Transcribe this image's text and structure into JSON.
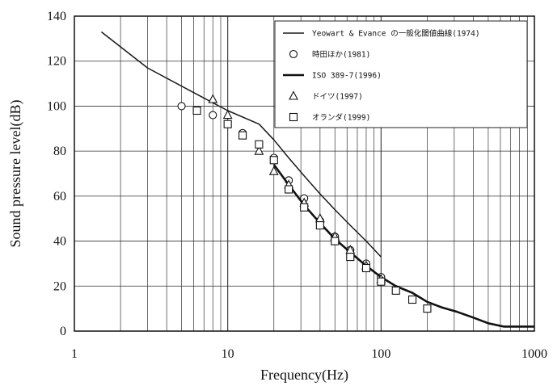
{
  "chart_data": {
    "type": "line",
    "xlabel": "Frequency(Hz)",
    "ylabel": "Sound pressure level(dB)",
    "xscale": "log",
    "xlim": [
      1,
      1000
    ],
    "ylim": [
      0,
      140
    ],
    "x_ticks": [
      "1",
      "10",
      "100",
      "1000"
    ],
    "y_ticks": [
      "0",
      "20",
      "40",
      "60",
      "80",
      "100",
      "120",
      "140"
    ],
    "grid": true,
    "legend_position": "top-right",
    "series": [
      {
        "name": "Yeowart & Evance の一般化閾値曲線(1974)",
        "style": "thin-line",
        "color": "#1a1a1a",
        "x": [
          1.5,
          3,
          6,
          10,
          16,
          20,
          25,
          31.5,
          40,
          50,
          63,
          80,
          100
        ],
        "y": [
          133,
          117,
          106,
          98,
          92,
          85,
          77,
          69,
          61,
          54,
          47,
          40,
          33
        ]
      },
      {
        "name": "時田ほか(1981)",
        "style": "circle",
        "color": "#1a1a1a",
        "x": [
          5,
          8,
          12.5,
          20,
          25,
          31.5,
          40,
          50,
          63,
          80,
          100
        ],
        "y": [
          100,
          96,
          88,
          77,
          67,
          59,
          49,
          42,
          36,
          30,
          24
        ]
      },
      {
        "name": "ISO 389-7(1996)",
        "style": "thick-line",
        "color": "#111111",
        "x": [
          20,
          25,
          31.5,
          40,
          50,
          63,
          80,
          100,
          125,
          160,
          200,
          250,
          315,
          400,
          500,
          630,
          800,
          1000
        ],
        "y": [
          74,
          65,
          56,
          48,
          41,
          35,
          29,
          24,
          20,
          17,
          13,
          10.5,
          8.5,
          6,
          3.5,
          2,
          2,
          2
        ]
      },
      {
        "name": "ドイツ(1997)",
        "style": "triangle",
        "color": "#1a1a1a",
        "x": [
          8,
          10,
          16,
          20,
          25,
          31.5,
          40,
          50,
          63,
          80,
          100
        ],
        "y": [
          103,
          96,
          80,
          71,
          65,
          57,
          50,
          42,
          36,
          29,
          23
        ]
      },
      {
        "name": "オランダ(1999)",
        "style": "square",
        "color": "#1a1a1a",
        "x": [
          6.3,
          10,
          12.5,
          16,
          20,
          25,
          31.5,
          40,
          50,
          63,
          80,
          100,
          125,
          160,
          200
        ],
        "y": [
          98,
          92,
          87,
          83,
          76,
          63,
          55,
          47,
          40,
          33,
          28,
          22,
          18,
          14,
          10
        ]
      }
    ]
  }
}
